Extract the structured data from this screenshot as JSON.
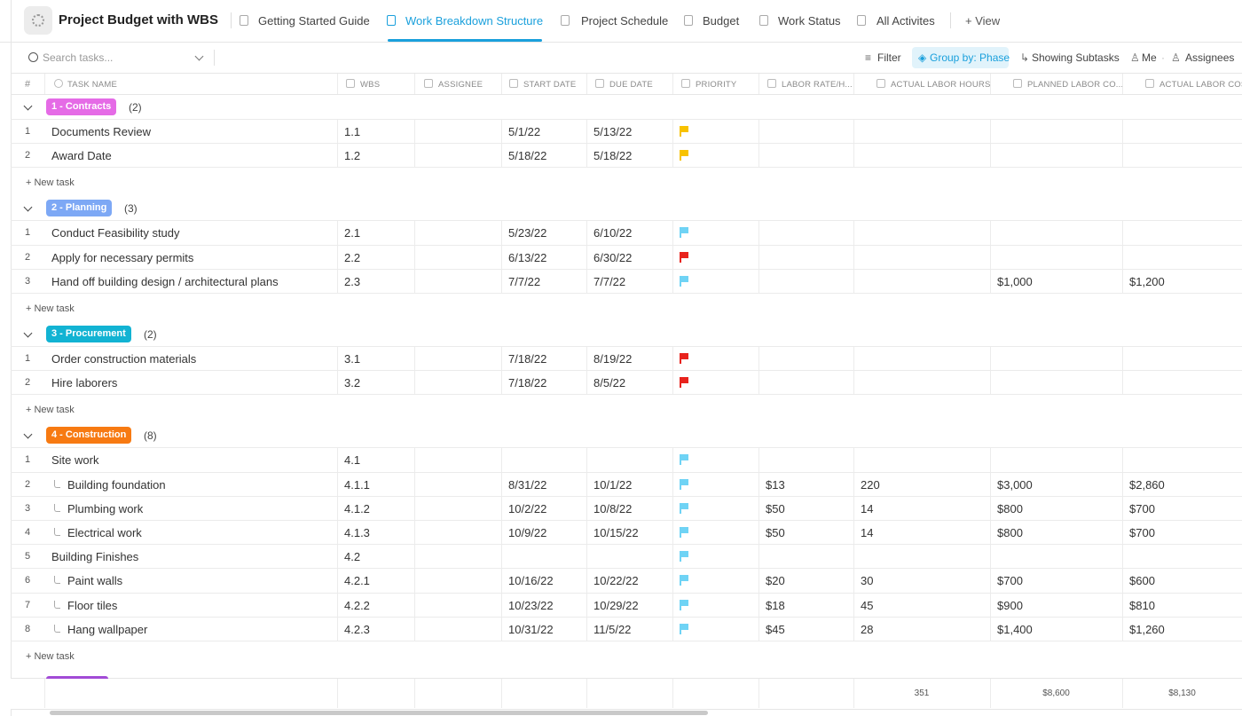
{
  "header": {
    "title": "Project Budget with WBS",
    "tabs": [
      "Getting Started Guide",
      "Work Breakdown Structure",
      "Project Schedule",
      "Budget",
      "Work Status",
      "All Activites"
    ],
    "active_tab": 1,
    "add_view": "+ View"
  },
  "toolbar": {
    "search_placeholder": "Search tasks...",
    "filter": "Filter",
    "group_by": "Group by: Phase",
    "subtasks": "Showing Subtasks",
    "me": "Me",
    "assignees": "Assignees"
  },
  "table": {
    "columns": [
      "#",
      "TASK NAME",
      "WBS",
      "ASSIGNEE",
      "START DATE",
      "DUE DATE",
      "PRIORITY",
      "LABOR RATE/H...",
      "ACTUAL LABOR HOURS",
      "PLANNED LABOR CO...",
      "ACTUAL LABOR COST"
    ],
    "groups": [
      {
        "label": "1 - Contracts",
        "count": "(2)",
        "color": "#e56be6",
        "new_task": "+ New task",
        "tasks": [
          {
            "num": 1,
            "name": "Documents Review",
            "wbs": "1.1",
            "start": "5/1/22",
            "due": "5/13/22",
            "priority": "#f8c200"
          },
          {
            "num": 2,
            "name": "Award Date",
            "wbs": "1.2",
            "start": "5/18/22",
            "due": "5/18/22",
            "priority": "#f8c200"
          }
        ]
      },
      {
        "label": "2 - Planning",
        "count": "(3)",
        "color": "#7da8f5",
        "new_task": "+ New task",
        "tasks": [
          {
            "num": 1,
            "name": "Conduct Feasibility study",
            "wbs": "2.1",
            "start": "5/23/22",
            "due": "6/10/22",
            "priority": "#6fd3f5"
          },
          {
            "num": 2,
            "name": "Apply for necessary permits",
            "wbs": "2.2",
            "start": "6/13/22",
            "due": "6/30/22",
            "priority": "#e8231d"
          },
          {
            "num": 3,
            "name": "Hand off building design / architectural plans",
            "wbs": "2.3",
            "start": "7/7/22",
            "due": "7/7/22",
            "priority": "#6fd3f5",
            "planned": "$1,000",
            "actual": "$1,200"
          }
        ]
      },
      {
        "label": "3 - Procurement",
        "count": "(2)",
        "color": "#12b3d3",
        "new_task": "+ New task",
        "tasks": [
          {
            "num": 1,
            "name": "Order construction materials",
            "wbs": "3.1",
            "start": "7/18/22",
            "due": "8/19/22",
            "priority": "#e8231d"
          },
          {
            "num": 2,
            "name": "Hire laborers",
            "wbs": "3.2",
            "start": "7/18/22",
            "due": "8/5/22",
            "priority": "#e8231d"
          }
        ]
      },
      {
        "label": "4 - Construction",
        "count": "(8)",
        "color": "#f77a12",
        "new_task": "+ New task",
        "tasks": [
          {
            "num": 1,
            "name": "Site work",
            "wbs": "4.1",
            "priority": "#6fd3f5"
          },
          {
            "num": 2,
            "name": "Building foundation",
            "subtask": true,
            "wbs": "4.1.1",
            "start": "8/31/22",
            "due": "10/1/22",
            "priority": "#6fd3f5",
            "labor_rate": "$13",
            "hours": 220,
            "planned": "$3,000",
            "actual": "$2,860"
          },
          {
            "num": 3,
            "name": "Plumbing work",
            "subtask": true,
            "wbs": "4.1.2",
            "start": "10/2/22",
            "due": "10/8/22",
            "priority": "#6fd3f5",
            "labor_rate": "$50",
            "hours": 14,
            "planned": "$800",
            "actual": "$700"
          },
          {
            "num": 4,
            "name": "Electrical work",
            "subtask": true,
            "wbs": "4.1.3",
            "start": "10/9/22",
            "due": "10/15/22",
            "priority": "#6fd3f5",
            "labor_rate": "$50",
            "hours": 14,
            "planned": "$800",
            "actual": "$700"
          },
          {
            "num": 5,
            "name": "Building Finishes",
            "wbs": "4.2",
            "priority": "#6fd3f5"
          },
          {
            "num": 6,
            "name": "Paint walls",
            "subtask": true,
            "wbs": "4.2.1",
            "start": "10/16/22",
            "due": "10/22/22",
            "priority": "#6fd3f5",
            "labor_rate": "$20",
            "hours": 30,
            "planned": "$700",
            "actual": "$600"
          },
          {
            "num": 7,
            "name": "Floor tiles",
            "subtask": true,
            "wbs": "4.2.2",
            "start": "10/23/22",
            "due": "10/29/22",
            "priority": "#6fd3f5",
            "labor_rate": "$18",
            "hours": 45,
            "planned": "$900",
            "actual": "$810"
          },
          {
            "num": 8,
            "name": "Hang wallpaper",
            "subtask": true,
            "wbs": "4.2.3",
            "start": "10/31/22",
            "due": "11/5/22",
            "priority": "#6fd3f5",
            "labor_rate": "$45",
            "hours": 28,
            "planned": "$1,400",
            "actual": "$1,260"
          }
        ]
      }
    ],
    "footer": {
      "hours": 351,
      "planned": "$8,600",
      "actual": "$8,130"
    }
  }
}
